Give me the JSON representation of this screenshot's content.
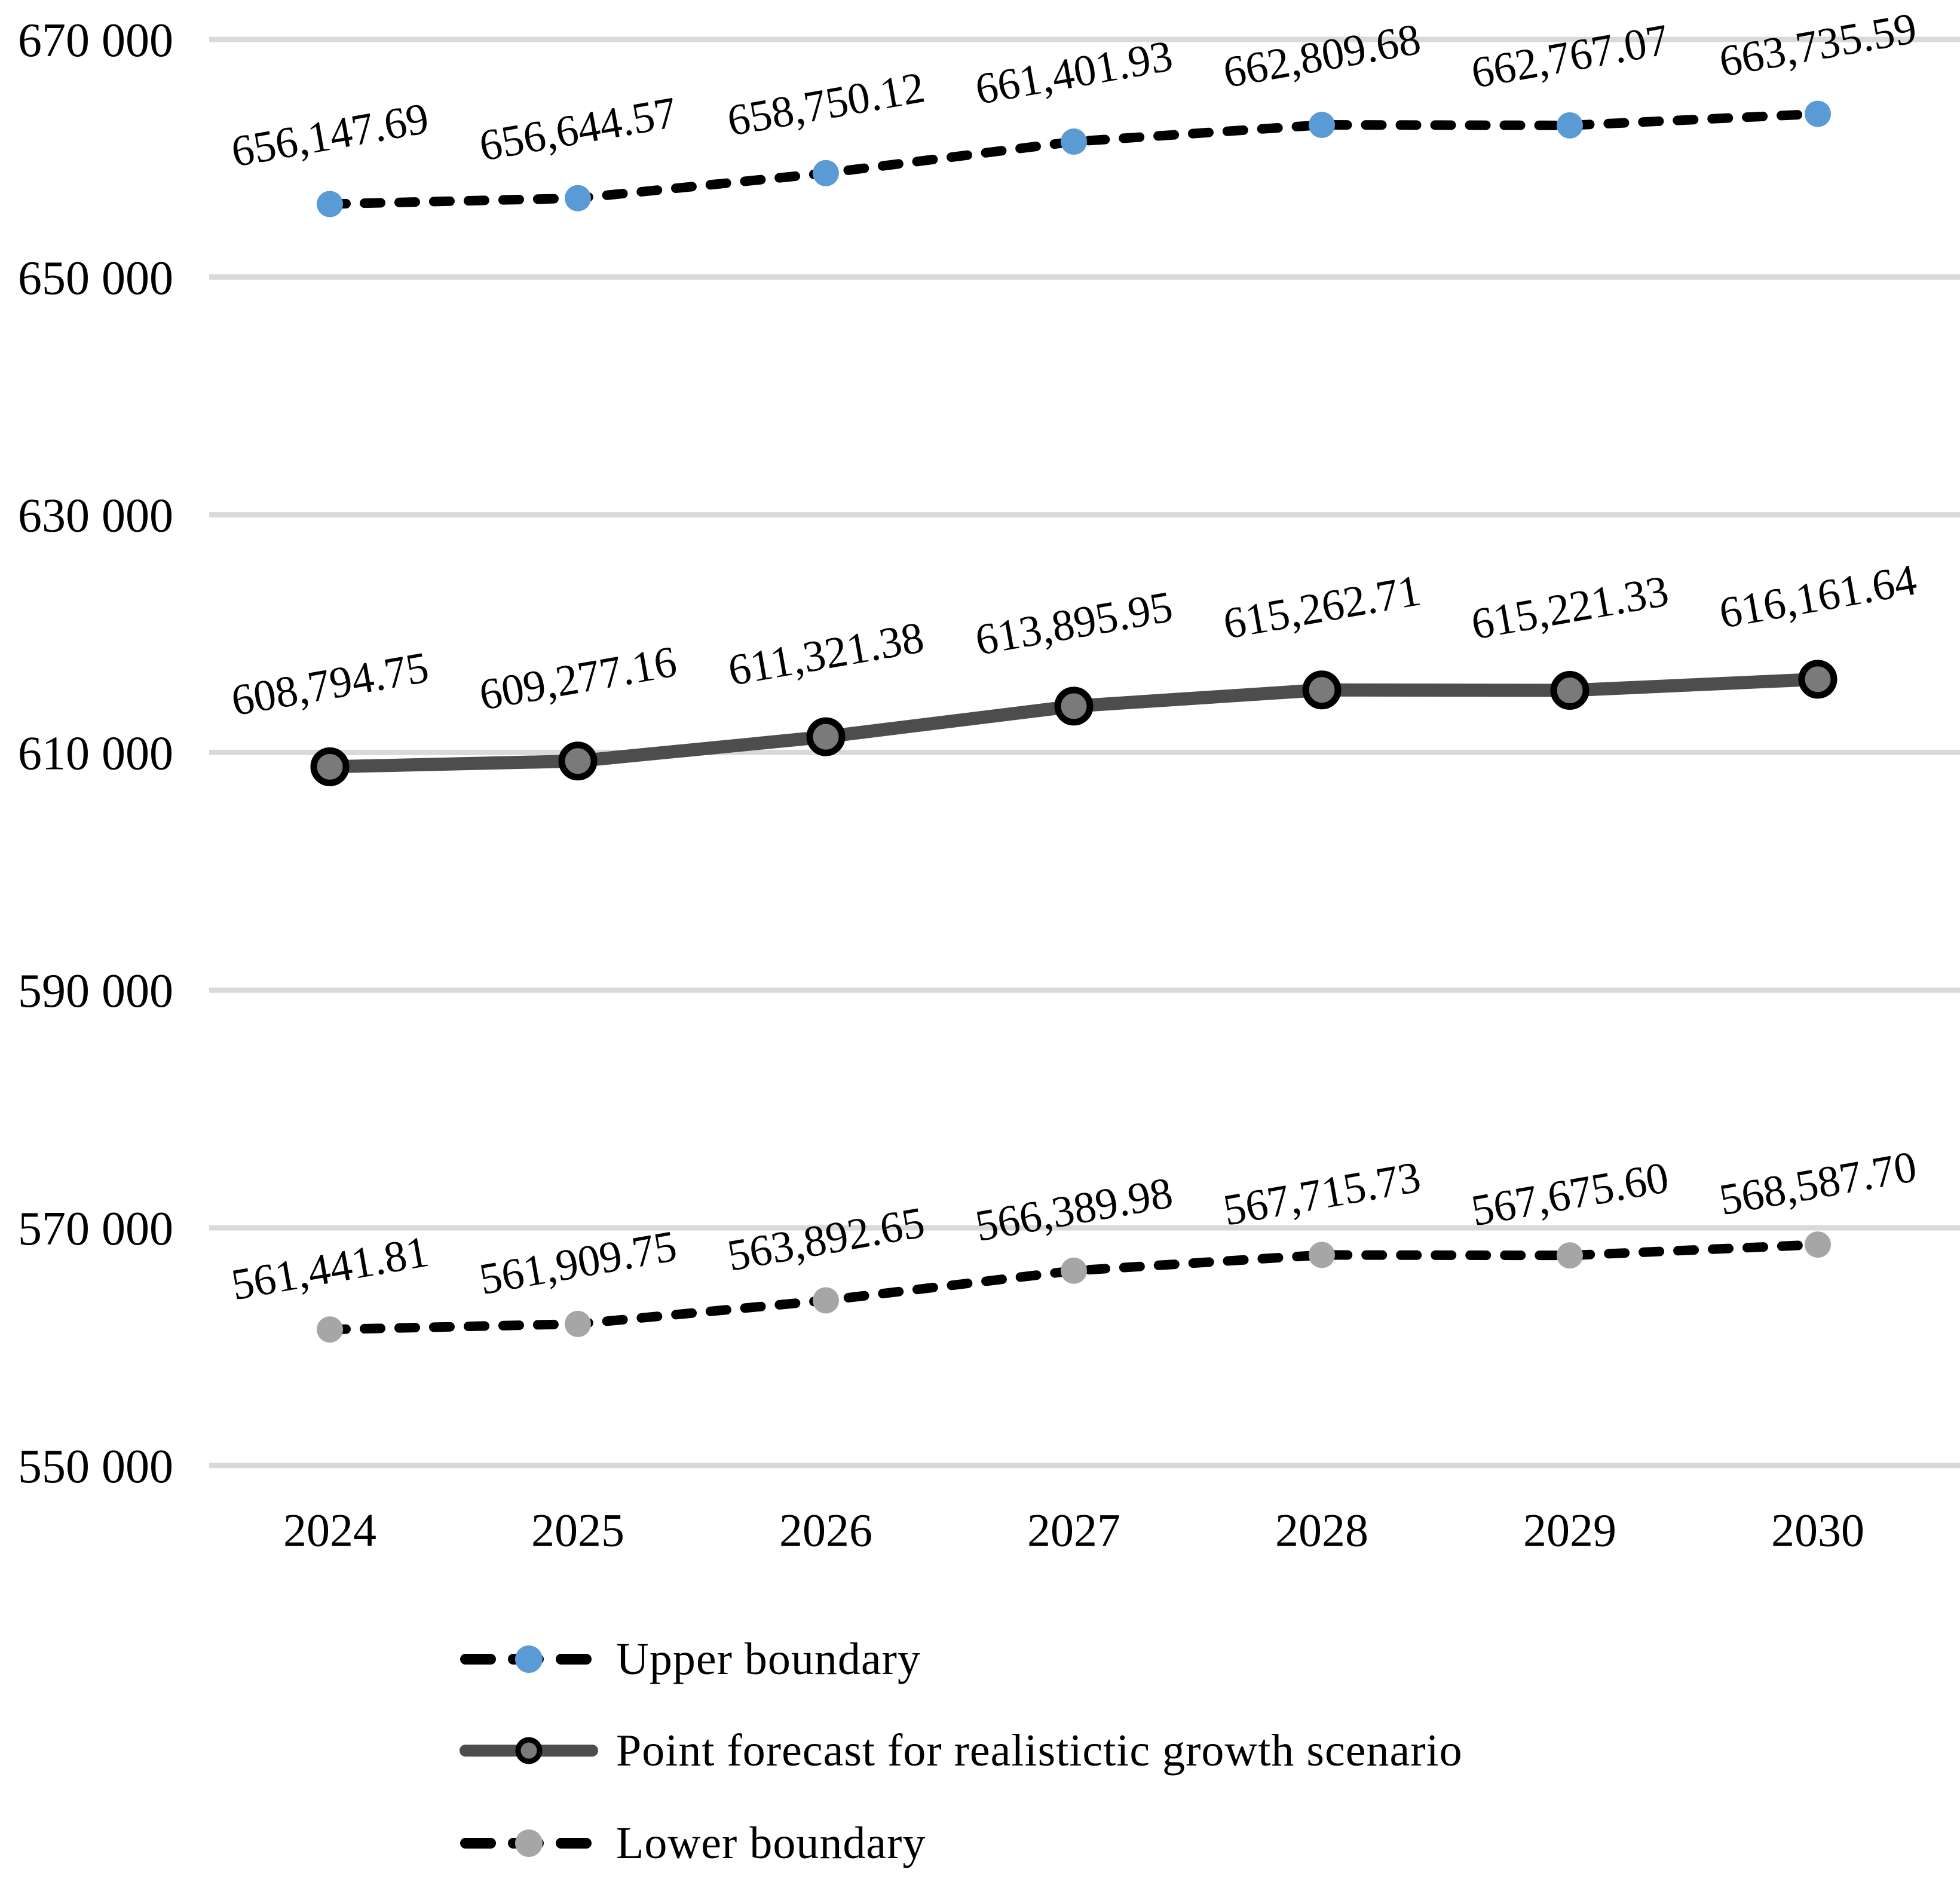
{
  "chart_data": {
    "type": "line",
    "title": "",
    "xlabel": "",
    "ylabel": "",
    "x_categories": [
      "2024",
      "2025",
      "2026",
      "2027",
      "2028",
      "2029",
      "2030"
    ],
    "y_axis": {
      "min": 550000,
      "max": 670000,
      "tick_step": 20000,
      "tick_labels": [
        "670 000",
        "650 000",
        "630 000",
        "610 000",
        "590 000",
        "570 000",
        "550 000"
      ],
      "grid": true,
      "grid_color": "#d9d9d9"
    },
    "legend_position": "bottom-left",
    "series": [
      {
        "name": "Upper boundary",
        "values": [
          656147.69,
          656644.57,
          658750.12,
          661401.93,
          662809.68,
          662767.07,
          663735.59
        ],
        "point_labels": [
          "656,147.69",
          "656,644.57",
          "658,750.12",
          "661,401.93",
          "662,809.68",
          "662,767.07",
          "663,735.59"
        ],
        "line_style": "dashed",
        "line_color": "#000000",
        "marker_color": "#5b9bd5"
      },
      {
        "name": "Point forecast for realistictic growth scenario",
        "values": [
          608794.75,
          609277.16,
          611321.38,
          613895.95,
          615262.71,
          615221.33,
          616161.64
        ],
        "point_labels": [
          "608,794.75",
          "609,277.16",
          "611,321.38",
          "613,895.95",
          "615,262.71",
          "615,221.33",
          "616,161.64"
        ],
        "line_style": "solid",
        "line_color": "#4d4d4d",
        "marker_color": "#7a7a7a",
        "marker_outline": "#000000"
      },
      {
        "name": "Lower boundary",
        "values": [
          561441.81,
          561909.75,
          563892.65,
          566389.98,
          567715.73,
          567675.6,
          568587.7
        ],
        "point_labels": [
          "561,441.81",
          "561,909.75",
          "563,892.65",
          "566,389.98",
          "567,715.73",
          "567,675.60",
          "568,587.70"
        ],
        "line_style": "dashed",
        "line_color": "#000000",
        "marker_color": "#a6a6a6"
      }
    ]
  }
}
